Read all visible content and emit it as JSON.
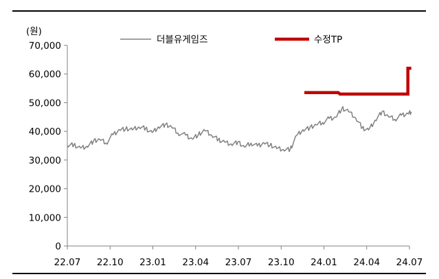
{
  "chart_data": {
    "type": "line",
    "unit_label": "(원)",
    "title": "",
    "xlabel": "",
    "ylabel": "",
    "ylim": [
      0,
      70000
    ],
    "y_ticks": [
      0,
      10000,
      20000,
      30000,
      40000,
      50000,
      60000,
      70000
    ],
    "y_tick_labels": [
      "0",
      "10,000",
      "20,000",
      "30,000",
      "40,000",
      "50,000",
      "60,000",
      "70,000"
    ],
    "x_range": [
      "2022-07",
      "2024-07"
    ],
    "x_tick_labels": [
      "22.07",
      "22.10",
      "23.01",
      "23.04",
      "23.07",
      "23.10",
      "24.01",
      "24.04",
      "24.07"
    ],
    "legend_position": "top",
    "grid": false,
    "series": [
      {
        "name": "더블유게임즈",
        "style": "line",
        "color": "#808080",
        "points": [
          [
            "2022-07-01",
            35000
          ],
          [
            "2022-07-15",
            35300
          ],
          [
            "2022-07-29",
            34200
          ],
          [
            "2022-08-12",
            34800
          ],
          [
            "2022-08-26",
            36500
          ],
          [
            "2022-09-09",
            37200
          ],
          [
            "2022-09-23",
            35900
          ],
          [
            "2022-10-07",
            38800
          ],
          [
            "2022-10-21",
            40600
          ],
          [
            "2022-11-04",
            40900
          ],
          [
            "2022-11-18",
            40500
          ],
          [
            "2022-12-02",
            41500
          ],
          [
            "2022-12-16",
            41000
          ],
          [
            "2022-12-30",
            39600
          ],
          [
            "2023-01-13",
            41600
          ],
          [
            "2023-01-27",
            42300
          ],
          [
            "2023-02-10",
            41600
          ],
          [
            "2023-02-24",
            39400
          ],
          [
            "2023-03-10",
            38700
          ],
          [
            "2023-03-24",
            37400
          ],
          [
            "2023-04-07",
            38900
          ],
          [
            "2023-04-21",
            40200
          ],
          [
            "2023-05-05",
            38600
          ],
          [
            "2023-05-19",
            37100
          ],
          [
            "2023-06-02",
            36300
          ],
          [
            "2023-06-16",
            35600
          ],
          [
            "2023-06-30",
            36200
          ],
          [
            "2023-07-14",
            34500
          ],
          [
            "2023-07-28",
            35900
          ],
          [
            "2023-08-11",
            34900
          ],
          [
            "2023-08-25",
            36000
          ],
          [
            "2023-09-08",
            35200
          ],
          [
            "2023-09-22",
            34000
          ],
          [
            "2023-10-06",
            33600
          ],
          [
            "2023-10-20",
            33600
          ],
          [
            "2023-11-03",
            38500
          ],
          [
            "2023-11-17",
            40600
          ],
          [
            "2023-12-01",
            41200
          ],
          [
            "2023-12-15",
            42300
          ],
          [
            "2023-12-29",
            43100
          ],
          [
            "2024-01-12",
            44500
          ],
          [
            "2024-01-26",
            44900
          ],
          [
            "2024-02-09",
            48000
          ],
          [
            "2024-02-23",
            46900
          ],
          [
            "2024-03-08",
            44600
          ],
          [
            "2024-03-22",
            41200
          ],
          [
            "2024-04-05",
            40500
          ],
          [
            "2024-04-19",
            43900
          ],
          [
            "2024-05-03",
            46800
          ],
          [
            "2024-05-17",
            45200
          ],
          [
            "2024-05-31",
            44200
          ],
          [
            "2024-06-14",
            45600
          ],
          [
            "2024-06-28",
            46300
          ],
          [
            "2024-07-05",
            46800
          ]
        ]
      },
      {
        "name": "수정TP",
        "style": "step",
        "color": "#c00000",
        "points": [
          [
            "2023-11-20",
            53500
          ],
          [
            "2024-02-01",
            53500
          ],
          [
            "2024-02-05",
            53000
          ],
          [
            "2024-06-28",
            53000
          ],
          [
            "2024-06-28",
            62000
          ],
          [
            "2024-07-05",
            62000
          ]
        ]
      }
    ]
  }
}
